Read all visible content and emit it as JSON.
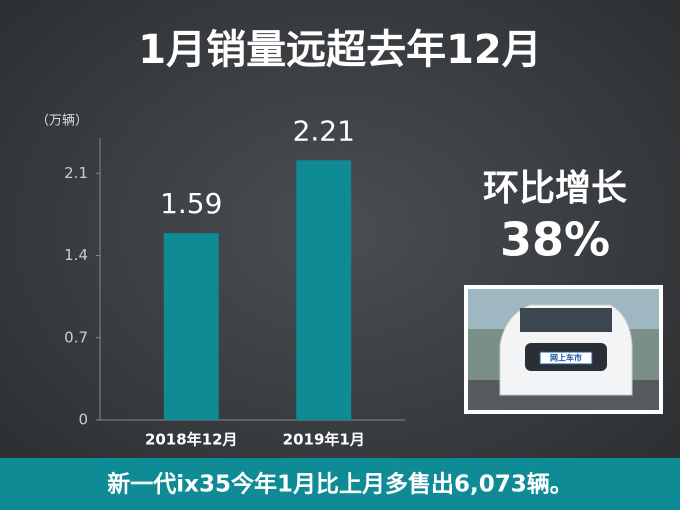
{
  "chart_data": {
    "type": "bar",
    "title": "1月销量远超去年12月",
    "y_label": "（万辆）",
    "categories": [
      "2018年12月",
      "2019年1月"
    ],
    "values": [
      1.59,
      2.21
    ],
    "color": "#0f8b96",
    "ylim": [
      0,
      2.4
    ],
    "yticks": [
      0,
      0.7,
      1.4,
      2.1
    ],
    "grid": false,
    "annotations": [
      "环比增长",
      "38%"
    ],
    "photo_text": "网上车市",
    "caption": "新一代ix35今年1月比上月多售出6,073辆。"
  }
}
